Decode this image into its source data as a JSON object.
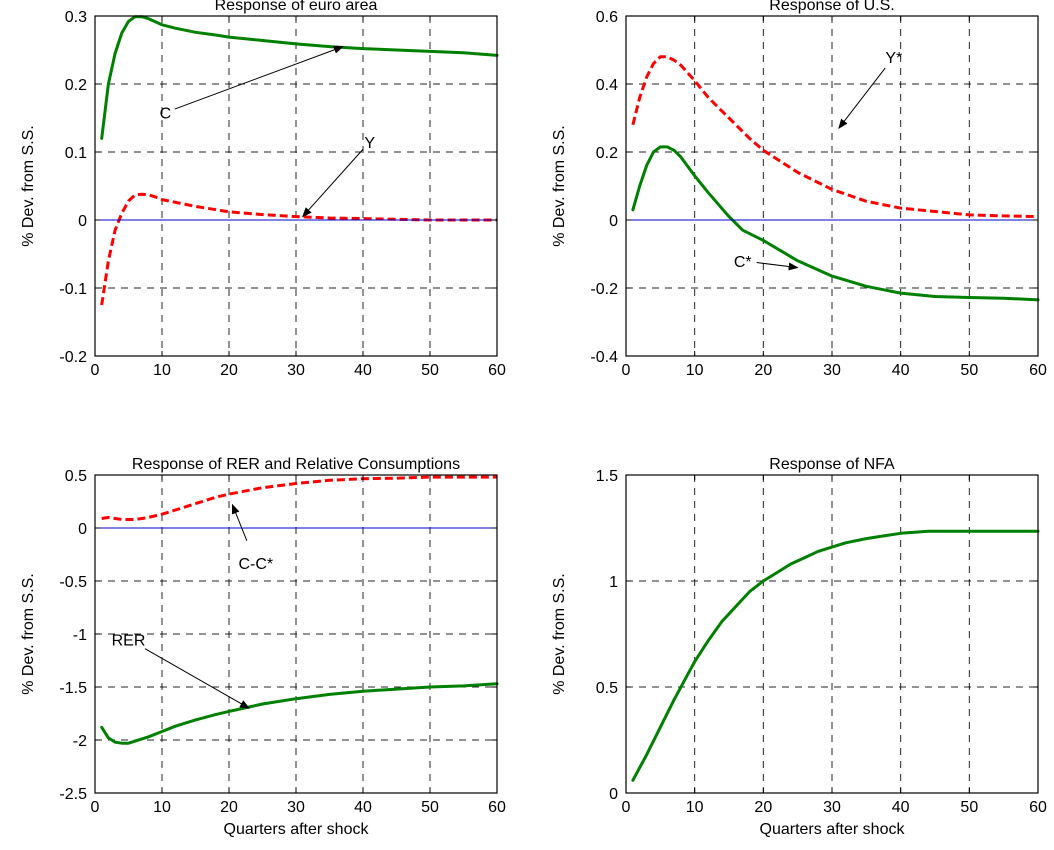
{
  "chart_data": [
    {
      "type": "line",
      "title": "Response of euro area",
      "xlabel": "",
      "ylabel": "% Dev. from S.S.",
      "xlim": [
        0,
        60
      ],
      "ylim": [
        -0.2,
        0.3
      ],
      "xticks": [
        0,
        10,
        20,
        30,
        40,
        50,
        60
      ],
      "yticks": [
        -0.2,
        -0.1,
        0,
        0.1,
        0.2,
        0.3
      ],
      "ytick_labels": [
        "-0.2",
        "-0.1",
        "0",
        "0.1",
        "0.2",
        "0.3"
      ],
      "grid": true,
      "series": [
        {
          "label": "C",
          "style": "solid",
          "color": "#008000",
          "x": [
            1,
            2,
            3,
            4,
            5,
            6,
            7,
            8,
            10,
            12,
            15,
            18,
            20,
            25,
            30,
            35,
            40,
            45,
            50,
            55,
            60
          ],
          "y": [
            0.12,
            0.2,
            0.245,
            0.275,
            0.292,
            0.299,
            0.299,
            0.296,
            0.287,
            0.282,
            0.276,
            0.272,
            0.269,
            0.264,
            0.259,
            0.255,
            0.252,
            0.25,
            0.248,
            0.246,
            0.242
          ]
        },
        {
          "label": "Y",
          "style": "dashed",
          "color": "#ff0000",
          "x": [
            1,
            2,
            3,
            4,
            5,
            6,
            7,
            8,
            9,
            10,
            12,
            15,
            20,
            25,
            30,
            35,
            40,
            45,
            50,
            55,
            60
          ],
          "y": [
            -0.125,
            -0.06,
            -0.015,
            0.01,
            0.028,
            0.037,
            0.038,
            0.037,
            0.034,
            0.03,
            0.026,
            0.02,
            0.012,
            0.008,
            0.005,
            0.003,
            0.002,
            0.001,
            0.0,
            0.0,
            0.0
          ]
        },
        {
          "label": "",
          "style": "thin",
          "color": "#0000cc",
          "x": [
            0,
            60
          ],
          "y": [
            0,
            0
          ]
        }
      ],
      "annotations": [
        {
          "text": "C",
          "x": 10.5,
          "y": 0.158,
          "arrow_to": [
            37,
            0.255
          ]
        },
        {
          "text": "Y",
          "x": 41,
          "y": 0.115,
          "arrow_to": [
            31,
            0.005
          ]
        }
      ]
    },
    {
      "type": "line",
      "title": "Response of U.S.",
      "xlabel": "",
      "ylabel": "% Dev. from S.S.",
      "xlim": [
        0,
        60
      ],
      "ylim": [
        -0.4,
        0.6
      ],
      "xticks": [
        0,
        10,
        20,
        30,
        40,
        50,
        60
      ],
      "yticks": [
        -0.4,
        -0.2,
        0,
        0.2,
        0.4,
        0.6
      ],
      "ytick_labels": [
        "-0.4",
        "-0.2",
        "0",
        "0.2",
        "0.4",
        "0.6"
      ],
      "grid": true,
      "series": [
        {
          "label": "Y*",
          "style": "dashed",
          "color": "#ff0000",
          "x": [
            1,
            2,
            3,
            4,
            5,
            6,
            7,
            8,
            10,
            12,
            15,
            18,
            20,
            25,
            30,
            35,
            40,
            45,
            50,
            55,
            60
          ],
          "y": [
            0.28,
            0.36,
            0.42,
            0.46,
            0.48,
            0.48,
            0.47,
            0.455,
            0.41,
            0.36,
            0.3,
            0.24,
            0.205,
            0.14,
            0.09,
            0.055,
            0.035,
            0.025,
            0.015,
            0.012,
            0.01
          ]
        },
        {
          "label": "C*",
          "style": "solid",
          "color": "#008000",
          "x": [
            1,
            2,
            3,
            4,
            5,
            6,
            7,
            8,
            10,
            12,
            15,
            17,
            20,
            25,
            30,
            35,
            40,
            45,
            50,
            55,
            60
          ],
          "y": [
            0.03,
            0.1,
            0.16,
            0.2,
            0.215,
            0.215,
            0.205,
            0.185,
            0.13,
            0.08,
            0.01,
            -0.03,
            -0.06,
            -0.12,
            -0.165,
            -0.195,
            -0.215,
            -0.225,
            -0.228,
            -0.23,
            -0.235
          ]
        },
        {
          "label": "",
          "style": "thin",
          "color": "#0000cc",
          "x": [
            0,
            60
          ],
          "y": [
            0,
            0
          ]
        }
      ],
      "annotations": [
        {
          "text": "Y*",
          "x": 39,
          "y": 0.48,
          "arrow_to": [
            31,
            0.27
          ]
        },
        {
          "text": "C*",
          "x": 17,
          "y": -0.12,
          "arrow_to": [
            25,
            -0.14
          ]
        }
      ]
    },
    {
      "type": "line",
      "title": "Response of RER and Relative Consumptions",
      "xlabel": "Quarters after shock",
      "ylabel": "% Dev. from S.S.",
      "xlim": [
        0,
        60
      ],
      "ylim": [
        -2.5,
        0.5
      ],
      "xticks": [
        0,
        10,
        20,
        30,
        40,
        50,
        60
      ],
      "yticks": [
        -2.5,
        -2,
        -1.5,
        -1,
        -0.5,
        0,
        0.5
      ],
      "ytick_labels": [
        "-2.5",
        "-2",
        "-1.5",
        "-1",
        "-0.5",
        "0",
        "0.5"
      ],
      "grid": true,
      "series": [
        {
          "label": "C-C*",
          "style": "dashed",
          "color": "#ff0000",
          "x": [
            1,
            2,
            3,
            4,
            5,
            6,
            7,
            8,
            10,
            12,
            15,
            18,
            20,
            25,
            30,
            35,
            40,
            45,
            50,
            55,
            60
          ],
          "y": [
            0.09,
            0.1,
            0.09,
            0.08,
            0.08,
            0.08,
            0.09,
            0.1,
            0.13,
            0.17,
            0.23,
            0.29,
            0.32,
            0.38,
            0.42,
            0.45,
            0.465,
            0.47,
            0.48,
            0.48,
            0.48
          ]
        },
        {
          "label": "RER",
          "style": "solid",
          "color": "#008000",
          "x": [
            1,
            2,
            3,
            4,
            5,
            6,
            8,
            10,
            12,
            15,
            18,
            20,
            25,
            30,
            35,
            40,
            45,
            50,
            55,
            60
          ],
          "y": [
            -1.88,
            -1.98,
            -2.02,
            -2.03,
            -2.03,
            -2.01,
            -1.97,
            -1.92,
            -1.87,
            -1.81,
            -1.76,
            -1.73,
            -1.66,
            -1.61,
            -1.57,
            -1.54,
            -1.52,
            -1.5,
            -1.49,
            -1.47
          ]
        },
        {
          "label": "",
          "style": "thin",
          "color": "#0000cc",
          "x": [
            0,
            60
          ],
          "y": [
            0,
            0
          ]
        }
      ],
      "annotations": [
        {
          "text": "C-C*",
          "x": 24,
          "y": -0.33,
          "arrow_to": [
            20.5,
            0.22
          ]
        },
        {
          "text": "RER",
          "x": 5,
          "y": -1.05,
          "arrow_to": [
            23,
            -1.7
          ]
        }
      ]
    },
    {
      "type": "line",
      "title": "Response of NFA",
      "xlabel": "Quarters after shock",
      "ylabel": "% Dev. from S.S.",
      "xlim": [
        0,
        60
      ],
      "ylim": [
        0,
        1.5
      ],
      "xticks": [
        0,
        10,
        20,
        30,
        40,
        50,
        60
      ],
      "yticks": [
        0,
        0.5,
        1,
        1.5
      ],
      "ytick_labels": [
        "0",
        "0.5",
        "1",
        "1.5"
      ],
      "grid": true,
      "series": [
        {
          "label": "NFA",
          "style": "solid",
          "color": "#008000",
          "x": [
            1,
            3,
            5,
            7,
            9,
            10,
            12,
            14,
            16,
            18,
            20,
            22,
            24,
            26,
            28,
            30,
            32,
            35,
            38,
            40,
            42,
            44,
            50,
            55,
            60
          ],
          "y": [
            0.06,
            0.18,
            0.31,
            0.44,
            0.56,
            0.62,
            0.72,
            0.81,
            0.88,
            0.95,
            1.0,
            1.04,
            1.08,
            1.11,
            1.14,
            1.16,
            1.18,
            1.2,
            1.215,
            1.225,
            1.23,
            1.235,
            1.235,
            1.235,
            1.235
          ]
        },
        {
          "label": "",
          "style": "thin",
          "color": "#0000cc",
          "x": [
            0,
            60
          ],
          "y": [
            0,
            0
          ]
        }
      ],
      "annotations": []
    }
  ]
}
